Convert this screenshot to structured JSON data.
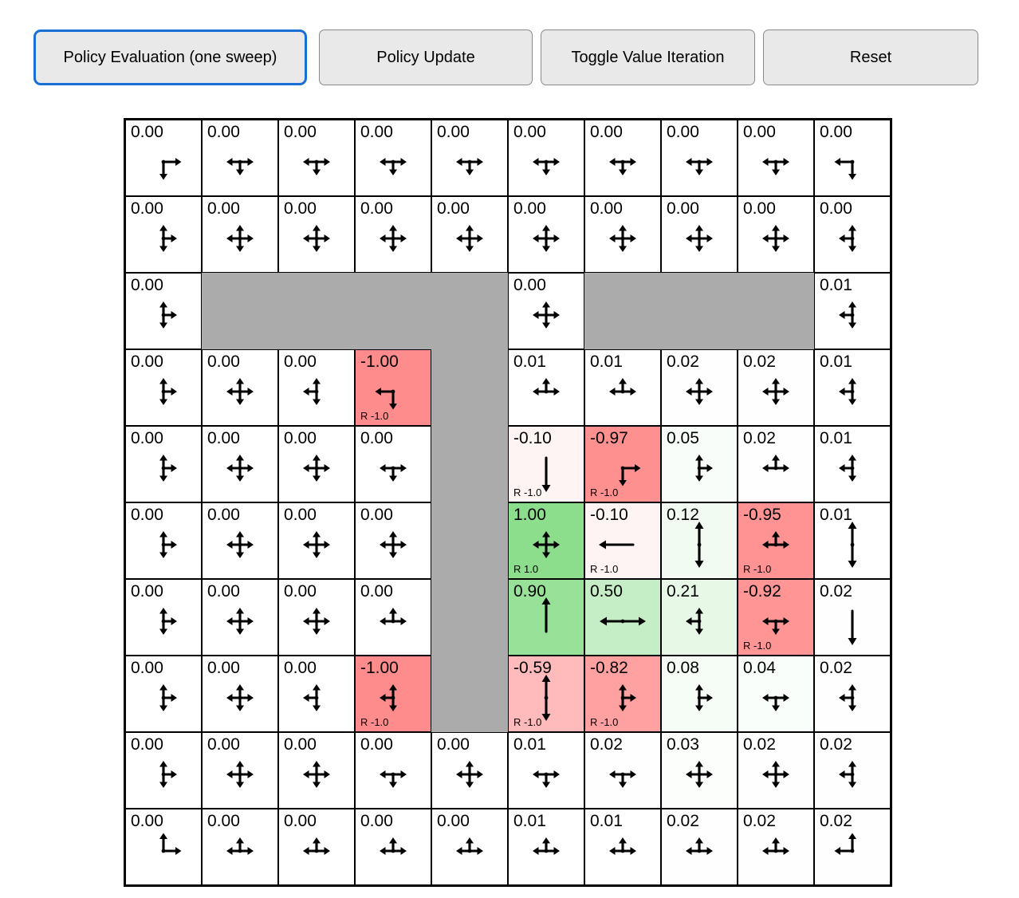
{
  "toolbar": {
    "buttons": [
      {
        "label": "Policy Evaluation (one sweep)",
        "active": true
      },
      {
        "label": "Policy Update",
        "active": false
      },
      {
        "label": "Toggle Value Iteration",
        "active": false
      },
      {
        "label": "Reset",
        "active": false
      }
    ],
    "active_border_color": "#1a6fd6",
    "button_bg_color": "#e9e9e9"
  },
  "grid": {
    "rows": 10,
    "cols": 10,
    "wall_color": "#ababab",
    "positive_color": "#00b400",
    "negative_color": "#ff0000",
    "max_tint_alpha": 0.45,
    "cells": [
      [
        {
          "v": "0.00",
          "a": "RD"
        },
        {
          "v": "0.00",
          "a": "LRD"
        },
        {
          "v": "0.00",
          "a": "LRD"
        },
        {
          "v": "0.00",
          "a": "LRD"
        },
        {
          "v": "0.00",
          "a": "LRD"
        },
        {
          "v": "0.00",
          "a": "LRD"
        },
        {
          "v": "0.00",
          "a": "LRD"
        },
        {
          "v": "0.00",
          "a": "LRD"
        },
        {
          "v": "0.00",
          "a": "LRD"
        },
        {
          "v": "0.00",
          "a": "LD"
        }
      ],
      [
        {
          "v": "0.00",
          "a": "URD"
        },
        {
          "v": "0.00",
          "a": "ULRD"
        },
        {
          "v": "0.00",
          "a": "ULRD"
        },
        {
          "v": "0.00",
          "a": "ULRD"
        },
        {
          "v": "0.00",
          "a": "ULRD"
        },
        {
          "v": "0.00",
          "a": "ULRD"
        },
        {
          "v": "0.00",
          "a": "ULRD"
        },
        {
          "v": "0.00",
          "a": "ULRD"
        },
        {
          "v": "0.00",
          "a": "ULRD"
        },
        {
          "v": "0.00",
          "a": "ULD"
        }
      ],
      [
        {
          "v": "0.00",
          "a": "URD"
        },
        {
          "wall": true
        },
        {
          "wall": true
        },
        {
          "wall": true
        },
        {
          "wall": true
        },
        {
          "v": "0.00",
          "a": "ULRD"
        },
        {
          "wall": true
        },
        {
          "wall": true
        },
        {
          "wall": true
        },
        {
          "v": "0.01",
          "a": "ULD"
        }
      ],
      [
        {
          "v": "0.00",
          "a": "URD"
        },
        {
          "v": "0.00",
          "a": "ULRD"
        },
        {
          "v": "0.00",
          "a": "ULD"
        },
        {
          "v": "-1.00",
          "a": "LD",
          "r": "R -1.0"
        },
        {
          "wall": true
        },
        {
          "v": "0.01",
          "a": "ULR"
        },
        {
          "v": "0.01",
          "a": "ULR"
        },
        {
          "v": "0.02",
          "a": "ULRD"
        },
        {
          "v": "0.02",
          "a": "ULRD"
        },
        {
          "v": "0.01",
          "a": "ULD"
        }
      ],
      [
        {
          "v": "0.00",
          "a": "URD"
        },
        {
          "v": "0.00",
          "a": "ULRD"
        },
        {
          "v": "0.00",
          "a": "ULRD"
        },
        {
          "v": "0.00",
          "a": "LRD"
        },
        {
          "wall": true
        },
        {
          "v": "-0.10",
          "a": "D",
          "r": "R -1.0"
        },
        {
          "v": "-0.97",
          "a": "RD",
          "r": "R -1.0"
        },
        {
          "v": "0.05",
          "a": "URD"
        },
        {
          "v": "0.02",
          "a": "ULR"
        },
        {
          "v": "0.01",
          "a": "ULD"
        }
      ],
      [
        {
          "v": "0.00",
          "a": "URD"
        },
        {
          "v": "0.00",
          "a": "ULRD"
        },
        {
          "v": "0.00",
          "a": "ULRD"
        },
        {
          "v": "0.00",
          "a": "ULRD"
        },
        {
          "wall": true
        },
        {
          "v": "1.00",
          "a": "ULRD",
          "r": "R 1.0"
        },
        {
          "v": "-0.10",
          "a": "L",
          "r": "R -1.0"
        },
        {
          "v": "0.12",
          "a": "UD"
        },
        {
          "v": "-0.95",
          "a": "ULR",
          "r": "R -1.0"
        },
        {
          "v": "0.01",
          "a": "UD"
        }
      ],
      [
        {
          "v": "0.00",
          "a": "URD"
        },
        {
          "v": "0.00",
          "a": "ULRD"
        },
        {
          "v": "0.00",
          "a": "ULRD"
        },
        {
          "v": "0.00",
          "a": "ULR"
        },
        {
          "wall": true
        },
        {
          "v": "0.90",
          "a": "U"
        },
        {
          "v": "0.50",
          "a": "LR"
        },
        {
          "v": "0.21",
          "a": "ULD"
        },
        {
          "v": "-0.92",
          "a": "LRD",
          "r": "R -1.0"
        },
        {
          "v": "0.02",
          "a": "D"
        }
      ],
      [
        {
          "v": "0.00",
          "a": "URD"
        },
        {
          "v": "0.00",
          "a": "ULRD"
        },
        {
          "v": "0.00",
          "a": "ULD"
        },
        {
          "v": "-1.00",
          "a": "ULD",
          "r": "R -1.0"
        },
        {
          "wall": true
        },
        {
          "v": "-0.59",
          "a": "UD",
          "r": "R -1.0"
        },
        {
          "v": "-0.82",
          "a": "URD",
          "r": "R -1.0"
        },
        {
          "v": "0.08",
          "a": "URD"
        },
        {
          "v": "0.04",
          "a": "LRD"
        },
        {
          "v": "0.02",
          "a": "ULD"
        }
      ],
      [
        {
          "v": "0.00",
          "a": "URD"
        },
        {
          "v": "0.00",
          "a": "ULRD"
        },
        {
          "v": "0.00",
          "a": "ULRD"
        },
        {
          "v": "0.00",
          "a": "LRD"
        },
        {
          "v": "0.00",
          "a": "ULRD"
        },
        {
          "v": "0.01",
          "a": "LRD"
        },
        {
          "v": "0.02",
          "a": "LRD"
        },
        {
          "v": "0.03",
          "a": "ULRD"
        },
        {
          "v": "0.02",
          "a": "ULRD"
        },
        {
          "v": "0.02",
          "a": "ULD"
        }
      ],
      [
        {
          "v": "0.00",
          "a": "UR"
        },
        {
          "v": "0.00",
          "a": "ULR"
        },
        {
          "v": "0.00",
          "a": "ULR"
        },
        {
          "v": "0.00",
          "a": "ULR"
        },
        {
          "v": "0.00",
          "a": "ULR"
        },
        {
          "v": "0.01",
          "a": "ULR"
        },
        {
          "v": "0.01",
          "a": "ULR"
        },
        {
          "v": "0.02",
          "a": "ULR"
        },
        {
          "v": "0.02",
          "a": "ULR"
        },
        {
          "v": "0.02",
          "a": "UL"
        }
      ]
    ]
  }
}
